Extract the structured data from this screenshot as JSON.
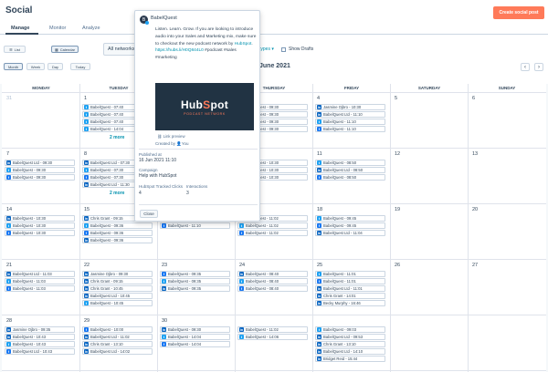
{
  "header": {
    "title": "Social",
    "create_button": "Create social post"
  },
  "tabs": [
    "Manage",
    "Monitor",
    "Analyze"
  ],
  "toolbar": {
    "list_label": "List",
    "calendar_label": "Calendar",
    "accounts_filter": "All networks",
    "types_filter": "types",
    "show_drafts": "Show Drafts",
    "month_label": "June 2021",
    "ranges": [
      "Month",
      "Week",
      "Day"
    ],
    "today": "Today"
  },
  "day_headers": [
    "MONDAY",
    "TUESDAY",
    "WEDNESDAY",
    "THURSDAY",
    "FRIDAY",
    "SATURDAY",
    "SUNDAY"
  ],
  "weeks": [
    {
      "days": [
        {
          "num": "31",
          "dim": true,
          "posts": []
        },
        {
          "num": "1",
          "posts": [
            [
              "tw",
              "BabelQuest - 07:40"
            ],
            [
              "tw",
              "BabelQuest - 07:40"
            ],
            [
              "tw",
              "BabelQuest - 07:40"
            ],
            [
              "tw",
              "BabelQuest - 14:04"
            ]
          ],
          "more": "2 more"
        },
        {
          "num": "",
          "posts": []
        },
        {
          "num": "",
          "posts": [
            [
              "li",
              "BabelQuest - 09:30"
            ],
            [
              "li",
              "BabelQuest - 09:30"
            ],
            [
              "li",
              "BabelQuest - 09:30"
            ],
            [
              "li",
              "BabelQuest - 09:30"
            ]
          ]
        },
        {
          "num": "4",
          "posts": [
            [
              "li",
              "Jasmine Ojbro - 10:30"
            ],
            [
              "li",
              "BabelQuest Ltd - 11:10"
            ],
            [
              "tw",
              "BabelQuest - 11:10"
            ],
            [
              "fb",
              "BabelQuest - 11:10"
            ]
          ]
        },
        {
          "num": "5",
          "posts": []
        },
        {
          "num": "6",
          "posts": []
        }
      ]
    },
    {
      "days": [
        {
          "num": "7",
          "posts": [
            [
              "li",
              "BabelQuest Ltd - 09:30"
            ],
            [
              "tw",
              "BabelQuest - 09:30"
            ],
            [
              "fb",
              "BabelQuest - 09:30"
            ]
          ]
        },
        {
          "num": "8",
          "posts": [
            [
              "li",
              "BabelQuest Ltd - 07:30"
            ],
            [
              "tw",
              "BabelQuest - 07:30"
            ],
            [
              "fb",
              "BabelQuest - 07:30"
            ],
            [
              "li",
              "BabelQuest Ltd - 11:30"
            ]
          ],
          "more": "2 more"
        },
        {
          "num": "",
          "posts": []
        },
        {
          "num": "",
          "posts": [
            [
              "li",
              "BabelQuest - 10:30"
            ],
            [
              "tw",
              "BabelQuest - 10:30"
            ],
            [
              "fb",
              "BabelQuest - 10:30"
            ]
          ]
        },
        {
          "num": "11",
          "posts": [
            [
              "tw",
              "BabelQuest - 08:50"
            ],
            [
              "li",
              "BabelQuest Ltd - 08:50"
            ],
            [
              "fb",
              "BabelQuest - 08:50"
            ]
          ]
        },
        {
          "num": "12",
          "posts": []
        },
        {
          "num": "13",
          "posts": []
        }
      ]
    },
    {
      "days": [
        {
          "num": "14",
          "posts": [
            [
              "li",
              "BabelQuest - 10:30"
            ],
            [
              "tw",
              "BabelQuest - 10:30"
            ],
            [
              "fb",
              "BabelQuest - 10:30"
            ]
          ]
        },
        {
          "num": "15",
          "posts": [
            [
              "li",
              "Chris Grant - 09:15"
            ],
            [
              "tw",
              "BabelQuest - 09:36"
            ],
            [
              "fb",
              "BabelQuest - 09:36"
            ],
            [
              "li",
              "BabelQuest - 09:36"
            ]
          ]
        },
        {
          "num": "16",
          "posts": [
            [
              "li",
              "BabelQuest - 11:10"
            ],
            [
              "fb",
              "BabelQuest - 11:10"
            ]
          ]
        },
        {
          "num": "17",
          "posts": [
            [
              "li",
              "BabelQuest - 11:02"
            ],
            [
              "tw",
              "BabelQuest - 11:02"
            ],
            [
              "fb",
              "BabelQuest - 11:02"
            ]
          ]
        },
        {
          "num": "18",
          "posts": [
            [
              "tw",
              "BabelQuest - 09:45"
            ],
            [
              "fb",
              "BabelQuest - 09:45"
            ],
            [
              "li",
              "BabelQuest Ltd - 11:04"
            ]
          ]
        },
        {
          "num": "19",
          "posts": []
        },
        {
          "num": "20",
          "posts": []
        }
      ]
    },
    {
      "days": [
        {
          "num": "21",
          "posts": [
            [
              "li",
              "BabelQuest Ltd - 11:03"
            ],
            [
              "tw",
              "BabelQuest - 11:03"
            ],
            [
              "fb",
              "BabelQuest - 11:03"
            ]
          ]
        },
        {
          "num": "22",
          "posts": [
            [
              "li",
              "Jasmine Ojbro - 09:30"
            ],
            [
              "li",
              "Chris Grant - 09:15"
            ],
            [
              "li",
              "Chris Grant - 10:45"
            ],
            [
              "li",
              "BabelQuest Ltd - 10:45"
            ],
            [
              "tw",
              "BabelQuest - 10:45"
            ]
          ]
        },
        {
          "num": "23",
          "posts": [
            [
              "fb",
              "BabelQuest - 09:35"
            ],
            [
              "tw",
              "BabelQuest - 09:35"
            ],
            [
              "li",
              "BabelQuest - 09:35"
            ]
          ]
        },
        {
          "num": "24",
          "posts": [
            [
              "li",
              "BabelQuest - 08:40"
            ],
            [
              "tw",
              "BabelQuest - 08:40"
            ],
            [
              "fb",
              "BabelQuest - 08:40"
            ]
          ]
        },
        {
          "num": "25",
          "posts": [
            [
              "tw",
              "BabelQuest - 11:01"
            ],
            [
              "fb",
              "BabelQuest - 11:01"
            ],
            [
              "li",
              "BabelQuest Ltd - 11:01"
            ],
            [
              "li",
              "Chris Grant - 14:01"
            ],
            [
              "li",
              "Becky Murphy - 16:46"
            ]
          ]
        },
        {
          "num": "26",
          "posts": []
        },
        {
          "num": "27",
          "posts": []
        }
      ]
    },
    {
      "days": [
        {
          "num": "28",
          "posts": [
            [
              "li",
              "Jasmine Ojbro - 09:35"
            ],
            [
              "li",
              "BabelQuest - 10:43"
            ],
            [
              "tw",
              "BabelQuest - 10:43"
            ],
            [
              "fb",
              "BabelQuest Ltd - 10:43"
            ]
          ]
        },
        {
          "num": "29",
          "posts": [
            [
              "fb",
              "BabelQuest - 10:00"
            ],
            [
              "li",
              "BabelQuest Ltd - 11:02"
            ],
            [
              "li",
              "Chris Grant - 13:10"
            ],
            [
              "li",
              "BabelQuest Ltd - 14:02"
            ]
          ]
        },
        {
          "num": "30",
          "posts": [
            [
              "li",
              "BabelQuest - 09:30"
            ],
            [
              "tw",
              "BabelQuest - 14:04"
            ],
            [
              "fb",
              "BabelQuest - 14:04"
            ]
          ]
        },
        {
          "num": "",
          "posts": [
            [
              "li",
              "BabelQuest - 11:02"
            ],
            [
              "tw",
              "BabelQuest - 14:06"
            ]
          ]
        },
        {
          "num": "",
          "posts": [
            [
              "tw",
              "BabelQuest - 09:03"
            ],
            [
              "li",
              "BabelQuest Ltd - 09:53"
            ],
            [
              "li",
              "Chris Grant - 13:10"
            ],
            [
              "li",
              "BabelQuest Ltd - 14:10"
            ],
            [
              "li",
              "Bridget Reid - 15:44"
            ]
          ]
        },
        {
          "num": "",
          "posts": []
        },
        {
          "num": "",
          "posts": []
        }
      ]
    }
  ],
  "popover": {
    "account": "BabelQuest",
    "message_pre": "Listen. Learn. Grow. If you are looking to introduce audio into your Sales and Marketing mix, make sure to checkout the new podcast network by ",
    "message_mention": "HubSpot",
    "message_mid": ". ",
    "message_link": "https://hubs.li/H0Q844L0",
    "message_tags": " #podcast #sales #marketing",
    "image_logo": "HubSpot",
    "image_subtitle": "PODCAST NETWORK",
    "link_preview": "Link preview",
    "created_by_label": "Created by",
    "created_by": "You",
    "published_label": "Published at",
    "published_value": "16 Jun 2021 11:10",
    "campaign_label": "Campaign",
    "campaign_value": "Help with HubSpot",
    "clicks_label": "HubSpot Tracked Clicks",
    "clicks_value": "4",
    "interactions_label": "Interactions",
    "interactions_value": "3",
    "close_label": "Close"
  },
  "colors": {
    "accent": "#ff7a59",
    "link": "#0091ae",
    "twitter": "#1da1f2",
    "linkedin": "#0a66c2",
    "facebook": "#1877f2"
  }
}
